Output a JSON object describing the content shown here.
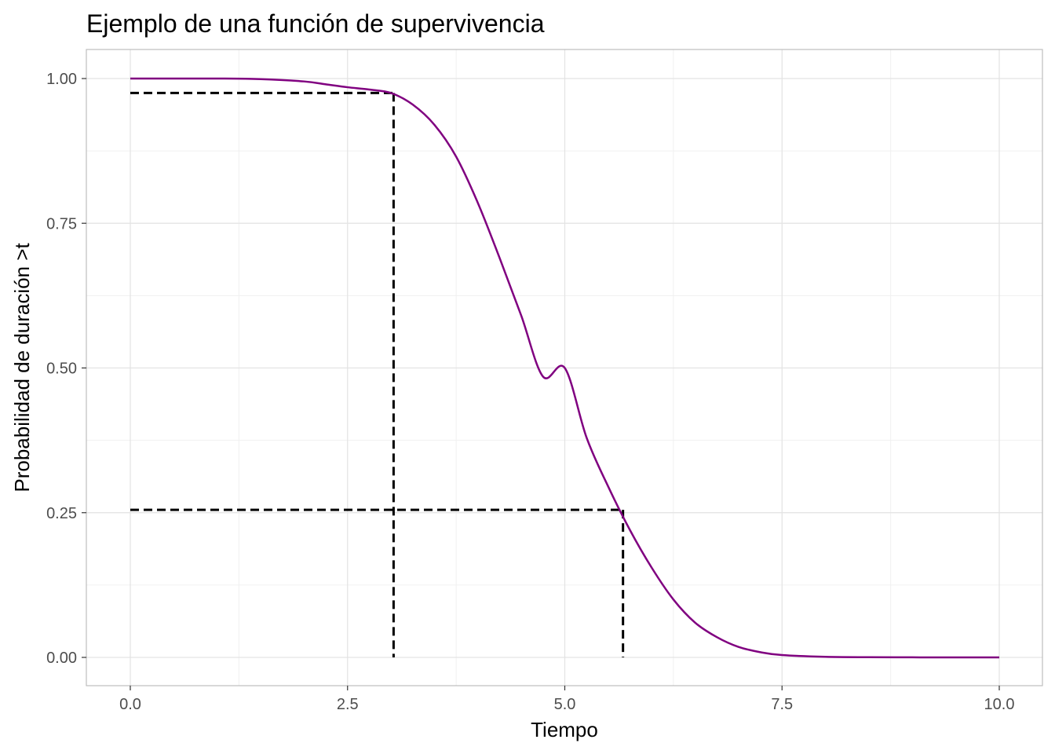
{
  "chart_data": {
    "type": "line",
    "title": "Ejemplo de una función de supervivencia",
    "xlabel": "Tiempo",
    "ylabel": "Probabilidad de duración >t",
    "xlim": [
      0,
      10
    ],
    "ylim": [
      0,
      1
    ],
    "x_ticks": [
      0,
      2.5,
      5,
      7.5,
      10
    ],
    "x_tick_labels": [
      "0.0",
      "2.5",
      "5.0",
      "7.5",
      "10.0"
    ],
    "y_ticks": [
      0,
      0.25,
      0.5,
      0.75,
      1
    ],
    "y_tick_labels": [
      "0.00",
      "0.25",
      "0.50",
      "0.75",
      "1.00"
    ],
    "grid": true,
    "legend": "none",
    "series": [
      {
        "color": "#800080",
        "x": [
          0,
          0.5,
          1,
          1.5,
          2,
          2.25,
          2.5,
          2.75,
          3,
          3.25,
          3.5,
          3.75,
          4,
          4.25,
          4.5,
          4.75,
          5,
          5.25,
          5.5,
          5.75,
          6,
          6.25,
          6.5,
          6.75,
          7,
          7.25,
          7.5,
          8,
          8.5,
          9,
          9.5,
          10
        ],
        "y": [
          1.0,
          1.0,
          1.0,
          0.999,
          0.995,
          0.99,
          0.985,
          0.981,
          0.975,
          0.955,
          0.92,
          0.865,
          0.785,
          0.69,
          0.59,
          0.485,
          0.5,
          0.38,
          0.295,
          0.22,
          0.155,
          0.1,
          0.06,
          0.035,
          0.018,
          0.009,
          0.004,
          0.001,
          0.0003,
          0.0001,
          0.0,
          0.0
        ]
      }
    ],
    "reference_lines": [
      {
        "x": 3.03,
        "y": 0.975,
        "color": "#000000",
        "style": "dashed"
      },
      {
        "x": 5.67,
        "y": 0.255,
        "color": "#000000",
        "style": "dashed"
      }
    ]
  }
}
